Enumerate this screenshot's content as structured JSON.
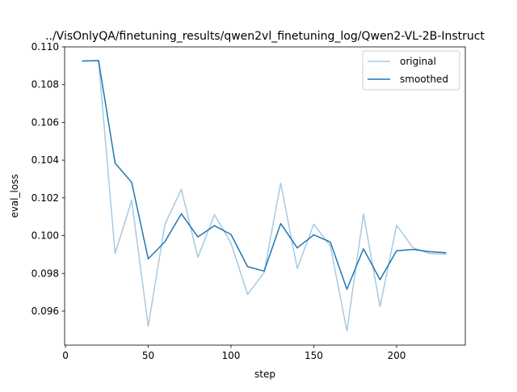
{
  "chart_data": {
    "type": "line",
    "title": "../VisOnlyQA/finetuning_results/qwen2vl_finetuning_log/Qwen2-VL-2B-Instruct",
    "xlabel": "step",
    "ylabel": "eval_loss",
    "xlim": [
      -0.5,
      241.5
    ],
    "ylim": [
      0.0942,
      0.11
    ],
    "xticks": [
      0,
      50,
      100,
      150,
      200
    ],
    "xtick_labels": [
      "0",
      "50",
      "100",
      "150",
      "200"
    ],
    "yticks": [
      0.096,
      0.098,
      0.1,
      0.102,
      0.104,
      0.106,
      0.108,
      0.11
    ],
    "ytick_labels": [
      "0.096",
      "0.098",
      "0.100",
      "0.102",
      "0.104",
      "0.106",
      "0.108",
      "0.110"
    ],
    "grid": false,
    "legend_position": "upper right",
    "x": [
      10,
      20,
      30,
      40,
      50,
      60,
      70,
      80,
      90,
      100,
      110,
      120,
      130,
      140,
      150,
      160,
      170,
      180,
      190,
      200,
      210,
      220,
      230
    ],
    "series": [
      {
        "name": "original",
        "color": "#a6c9e2",
        "values": [
          0.10925,
          0.10927,
          0.09905,
          0.10187,
          0.0952,
          0.10058,
          0.10245,
          0.09885,
          0.10111,
          0.0996,
          0.09688,
          0.09805,
          0.10278,
          0.09826,
          0.10061,
          0.09945,
          0.09495,
          0.10115,
          0.09625,
          0.10055,
          0.09935,
          0.09905,
          0.09902
        ]
      },
      {
        "name": "smoothed",
        "color": "#1f77b4",
        "values": [
          0.10925,
          0.10927,
          0.10384,
          0.10282,
          0.09877,
          0.09967,
          0.10116,
          0.09993,
          0.10053,
          0.10006,
          0.09836,
          0.09812,
          0.10064,
          0.09935,
          0.10004,
          0.09966,
          0.09716,
          0.0993,
          0.09767,
          0.0992,
          0.09927,
          0.09915,
          0.09909
        ]
      }
    ]
  }
}
